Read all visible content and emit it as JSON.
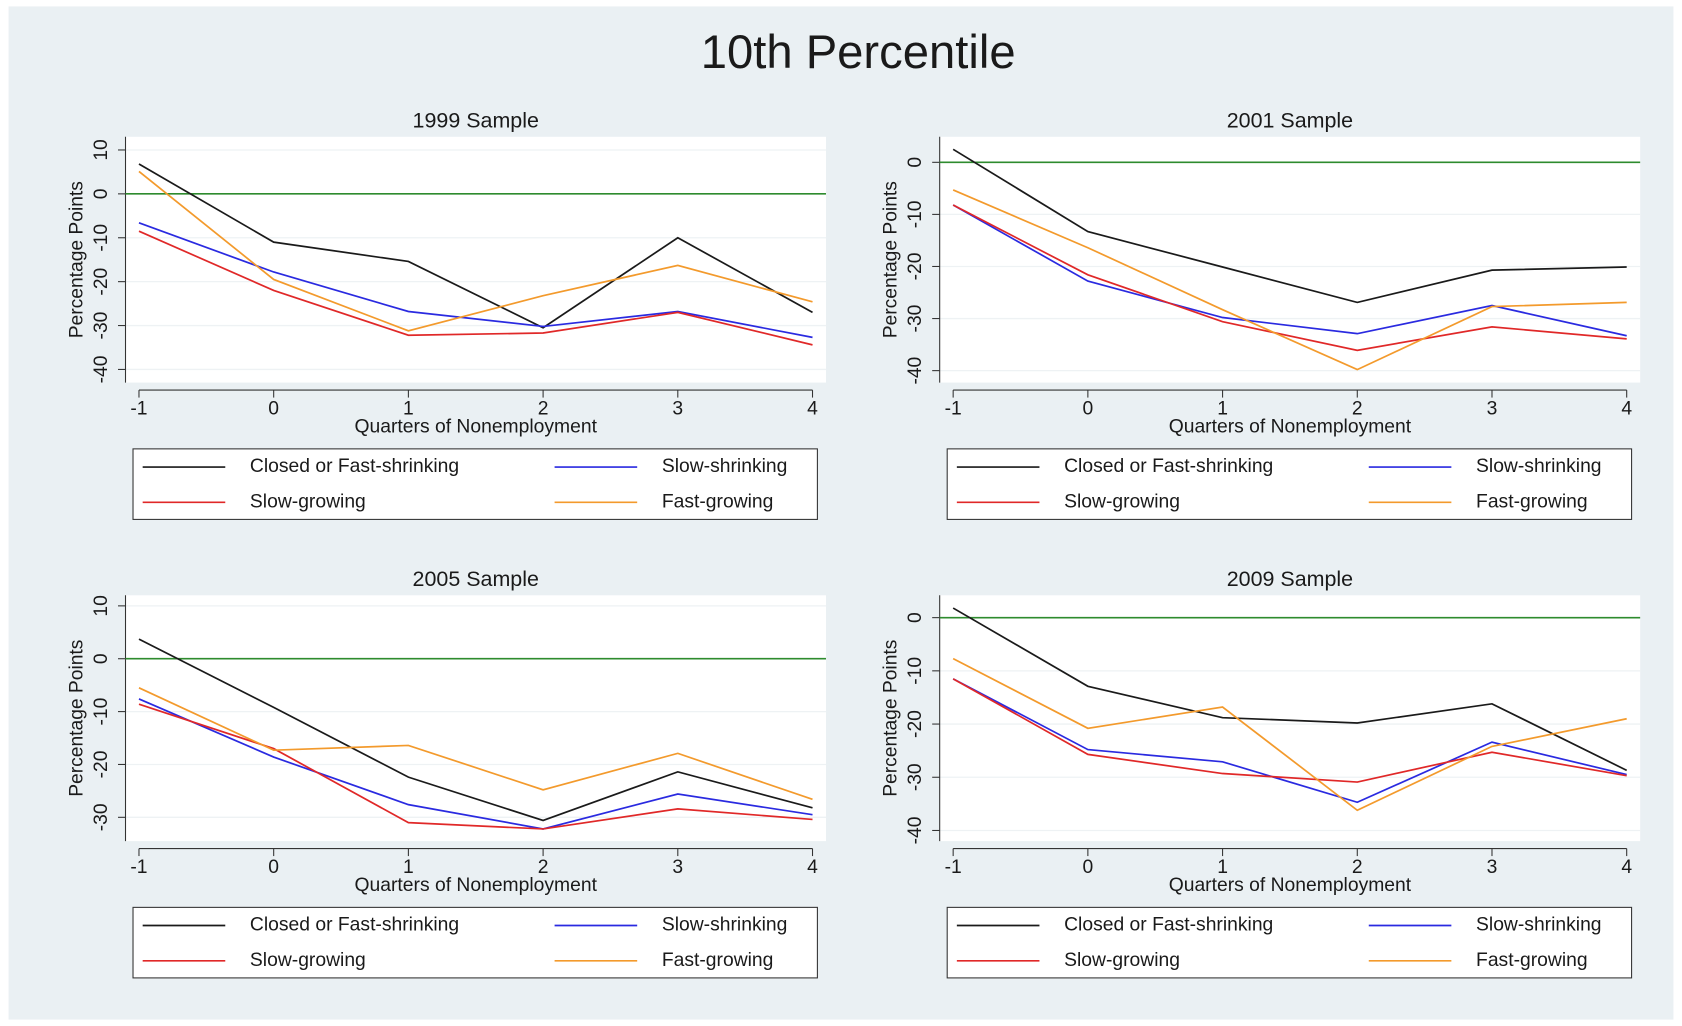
{
  "title": "10th Percentile",
  "chart_data": [
    {
      "type": "line",
      "title": "1999 Sample",
      "x_label": "Quarters of Nonemployment",
      "y_label": "Percentage Points",
      "x": [
        -1,
        0,
        1,
        2,
        3,
        4
      ],
      "xlim": [
        -1.1,
        4.1
      ],
      "xticks": [
        -1,
        0,
        1,
        2,
        3,
        4
      ],
      "ylim": [
        -43,
        13
      ],
      "yticks": [
        10,
        0,
        -10,
        -20,
        -30,
        -40
      ],
      "grid": true,
      "hline": 0,
      "hline_color": "#2e8b2e",
      "series": [
        {
          "name": "Closed or Fast-shrinking",
          "color": "#1a1a1a",
          "values": [
            6.8,
            -11,
            -15.4,
            -30.5,
            -10,
            -27
          ]
        },
        {
          "name": "Slow-shrinking",
          "color": "#2a2ae0",
          "values": [
            -6.6,
            -17.8,
            -26.8,
            -30.2,
            -26.8,
            -32.7
          ]
        },
        {
          "name": "Slow-growing",
          "color": "#e02828",
          "values": [
            -8.5,
            -22,
            -32.2,
            -31.7,
            -27,
            -34.4
          ]
        },
        {
          "name": "Fast-growing",
          "color": "#f39a2c",
          "values": [
            5.1,
            -19.5,
            -31.2,
            -23.2,
            -16.3,
            -24.6
          ]
        }
      ]
    },
    {
      "type": "line",
      "title": "2001 Sample",
      "x_label": "Quarters of Nonemployment",
      "y_label": "Percentage Points",
      "x": [
        -1,
        0,
        1,
        2,
        3,
        4
      ],
      "xlim": [
        -1.1,
        4.1
      ],
      "xticks": [
        -1,
        0,
        1,
        2,
        3,
        4
      ],
      "ylim": [
        -42.3,
        4.9
      ],
      "yticks": [
        0,
        -10,
        -20,
        -30,
        -40
      ],
      "grid": true,
      "hline": 0,
      "hline_color": "#2e8b2e",
      "series": [
        {
          "name": "Closed or Fast-shrinking",
          "color": "#1a1a1a",
          "values": [
            2.5,
            -13.3,
            -20.1,
            -26.9,
            -20.7,
            -20.1
          ]
        },
        {
          "name": "Slow-shrinking",
          "color": "#2a2ae0",
          "values": [
            -8.2,
            -22.8,
            -29.8,
            -32.9,
            -27.5,
            -33.3
          ]
        },
        {
          "name": "Slow-growing",
          "color": "#e02828",
          "values": [
            -8.2,
            -21.6,
            -30.6,
            -36.1,
            -31.6,
            -33.9
          ]
        },
        {
          "name": "Fast-growing",
          "color": "#f39a2c",
          "values": [
            -5.3,
            -16.4,
            -28.3,
            -39.8,
            -27.7,
            -26.9
          ]
        }
      ]
    },
    {
      "type": "line",
      "title": "2005 Sample",
      "x_label": "Quarters of Nonemployment",
      "y_label": "Percentage Points",
      "x": [
        -1,
        0,
        1,
        2,
        3,
        4
      ],
      "xlim": [
        -1.1,
        4.1
      ],
      "xticks": [
        -1,
        0,
        1,
        2,
        3,
        4
      ],
      "ylim": [
        -34.5,
        12
      ],
      "yticks": [
        10,
        0,
        -10,
        -20,
        -30
      ],
      "grid": true,
      "hline": 0,
      "hline_color": "#2e8b2e",
      "series": [
        {
          "name": "Closed or Fast-shrinking",
          "color": "#1a1a1a",
          "values": [
            3.7,
            -9.2,
            -22.4,
            -30.6,
            -21.4,
            -28.2
          ]
        },
        {
          "name": "Slow-shrinking",
          "color": "#2a2ae0",
          "values": [
            -7.6,
            -18.6,
            -27.6,
            -32.2,
            -25.6,
            -29.5
          ]
        },
        {
          "name": "Slow-growing",
          "color": "#e02828",
          "values": [
            -8.6,
            -17,
            -31,
            -32.2,
            -28.4,
            -30.4
          ]
        },
        {
          "name": "Fast-growing",
          "color": "#f39a2c",
          "values": [
            -5.5,
            -17.3,
            -16.4,
            -24.8,
            -17.9,
            -26.6
          ]
        }
      ]
    },
    {
      "type": "line",
      "title": "2009 Sample",
      "x_label": "Quarters of Nonemployment",
      "y_label": "Percentage Points",
      "x": [
        -1,
        0,
        1,
        2,
        3,
        4
      ],
      "xlim": [
        -1.1,
        4.1
      ],
      "xticks": [
        -1,
        0,
        1,
        2,
        3,
        4
      ],
      "ylim": [
        -42,
        4.2
      ],
      "yticks": [
        0,
        -10,
        -20,
        -30,
        -40
      ],
      "grid": true,
      "hline": 0,
      "hline_color": "#2e8b2e",
      "series": [
        {
          "name": "Closed or Fast-shrinking",
          "color": "#1a1a1a",
          "values": [
            1.8,
            -12.9,
            -18.8,
            -19.8,
            -16.2,
            -28.7
          ]
        },
        {
          "name": "Slow-shrinking",
          "color": "#2a2ae0",
          "values": [
            -11.5,
            -24.8,
            -27.1,
            -34.7,
            -23.4,
            -29.5
          ]
        },
        {
          "name": "Slow-growing",
          "color": "#e02828",
          "values": [
            -11.5,
            -25.7,
            -29.3,
            -30.9,
            -25.3,
            -29.7
          ]
        },
        {
          "name": "Fast-growing",
          "color": "#f39a2c",
          "values": [
            -7.7,
            -20.8,
            -16.8,
            -36.2,
            -24.2,
            -19
          ]
        }
      ]
    }
  ]
}
